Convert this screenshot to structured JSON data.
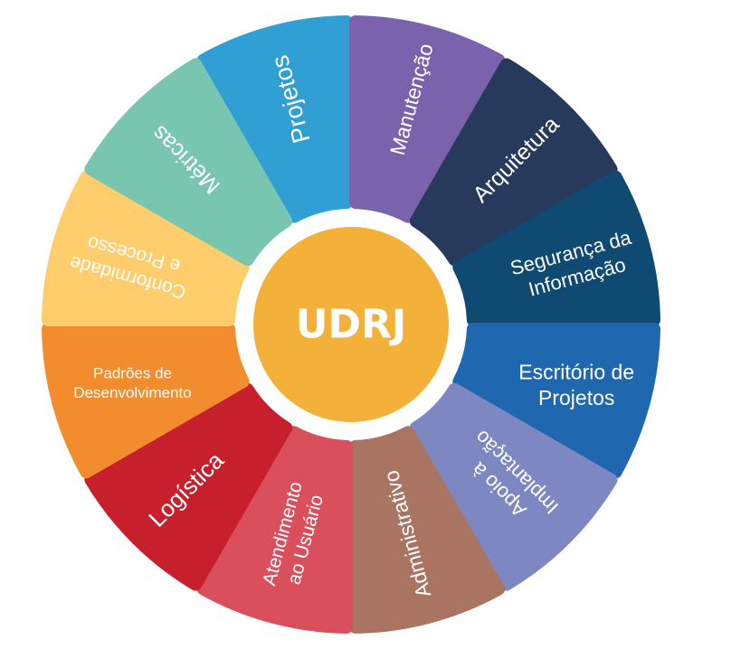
{
  "center": {
    "label": "UDRJ",
    "color": "#f3b13a"
  },
  "segments": [
    {
      "id": "projetos",
      "lines": [
        "Projetos"
      ],
      "color": "#2f9fd4"
    },
    {
      "id": "manutencao",
      "lines": [
        "Manutenção"
      ],
      "color": "#7a62ad"
    },
    {
      "id": "arquitetura",
      "lines": [
        "Arquitetura"
      ],
      "color": "#283a5c"
    },
    {
      "id": "seguranca",
      "lines": [
        "Segurança da",
        "Informação"
      ],
      "color": "#0f4a73"
    },
    {
      "id": "escritorio",
      "lines": [
        "Escritório de",
        "Projetos"
      ],
      "color": "#1f67ae"
    },
    {
      "id": "apoio",
      "lines": [
        "Apoio à",
        "Implantação"
      ],
      "color": "#7d88c2"
    },
    {
      "id": "administrativo",
      "lines": [
        "Administrativo"
      ],
      "color": "#a97562"
    },
    {
      "id": "atendimento",
      "lines": [
        "Atendimento",
        "ao Usuário"
      ],
      "color": "#d94f5c"
    },
    {
      "id": "logistica",
      "lines": [
        "Logística"
      ],
      "color": "#c7202c"
    },
    {
      "id": "padroes",
      "lines": [
        "Padrões de",
        "Desenvolvimento"
      ],
      "color": "#f28c2c"
    },
    {
      "id": "conformidade",
      "lines": [
        "Conformidade",
        "e Processo"
      ],
      "color": "#ffcd6b"
    },
    {
      "id": "metricas",
      "lines": [
        "Métricas"
      ],
      "color": "#78c5b0"
    }
  ]
}
